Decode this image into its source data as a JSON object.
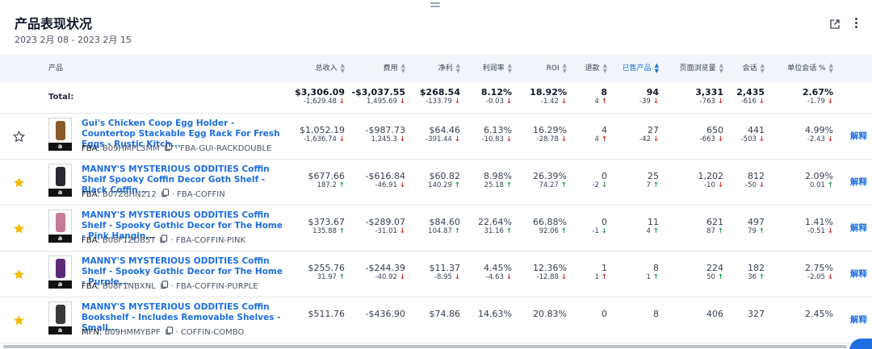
{
  "header": {
    "title": "产品表现状况",
    "date_range": "2023 2月 08 - 2023 2月 15"
  },
  "columns": {
    "product": "产品",
    "revenue": "总收入",
    "fees": "费用",
    "net": "净利",
    "margin": "利润率",
    "roi": "ROI",
    "refunds": "退款",
    "units": "已售产品",
    "pageviews": "页面浏览量",
    "sessions": "会话",
    "conversion": "单位会话 %"
  },
  "total": {
    "label": "Total:",
    "revenue": "$3,306.09",
    "revenue_d": "-1,629.48",
    "revenue_dir": "down",
    "fees": "-$3,037.55",
    "fees_d": "1,495.69",
    "fees_dir": "down",
    "net": "$268.54",
    "net_d": "-133.79",
    "net_dir": "down",
    "margin": "8.12%",
    "margin_d": "-0.03",
    "margin_dir": "down",
    "roi": "18.92%",
    "roi_d": "-1.42",
    "roi_dir": "down",
    "refunds": "8",
    "refunds_d": "4",
    "refunds_dir": "up-red",
    "units": "94",
    "units_d": "-39",
    "units_dir": "down",
    "pageviews": "3,331",
    "pageviews_d": "-763",
    "pageviews_dir": "down",
    "sessions": "2,435",
    "sessions_d": "-616",
    "sessions_dir": "down",
    "conversion": "2.67%",
    "conversion_d": "-1.79",
    "conversion_dir": "down"
  },
  "products": [
    {
      "starred": false,
      "thumb_color": "#8a5a2b",
      "badge": "a",
      "title": "Gui's Chicken Coop Egg Holder - Countertop Stackable Egg Rack For Fresh Eggs - Rustic Kitch...",
      "channel": "FBA:",
      "asin": "B09HMPL3MM",
      "sku": "· FBA-GUI-RACKDOUBLE",
      "revenue": "$1,052.19",
      "revenue_d": "-1,636.74",
      "revenue_dir": "down",
      "fees": "-$987.73",
      "fees_d": "1,245.3",
      "fees_dir": "down",
      "net": "$64.46",
      "net_d": "-391.44",
      "net_dir": "down",
      "margin": "6.13%",
      "margin_d": "-10.83",
      "margin_dir": "down",
      "roi": "16.29%",
      "roi_d": "-28.78",
      "roi_dir": "down",
      "refunds": "4",
      "refunds_d": "4",
      "refunds_dir": "up-red",
      "units": "27",
      "units_d": "-42",
      "units_dir": "down",
      "pageviews": "650",
      "pageviews_d": "-663",
      "pageviews_dir": "down",
      "sessions": "441",
      "sessions_d": "-503",
      "sessions_dir": "down",
      "conversion": "4.99%",
      "conversion_d": "-2.43",
      "conversion_dir": "down",
      "explain": "解释"
    },
    {
      "starred": true,
      "thumb_color": "#2a2a35",
      "badge": "a",
      "title": "MANNY'S MYSTERIOUS ODDITIES Coffin Shelf Spooky Coffin Decor Goth Shelf - Black Coffin...",
      "channel": "FBA:",
      "asin": "B07Z8HN212",
      "sku": "· FBA-COFFIN",
      "revenue": "$677.66",
      "revenue_d": "187.2",
      "revenue_dir": "up",
      "fees": "-$616.84",
      "fees_d": "-46.91",
      "fees_dir": "down",
      "net": "$60.82",
      "net_d": "140.29",
      "net_dir": "up",
      "margin": "8.98%",
      "margin_d": "25.18",
      "margin_dir": "up",
      "roi": "26.39%",
      "roi_d": "74.27",
      "roi_dir": "up",
      "refunds": "0",
      "refunds_d": "-2",
      "refunds_dir": "down-green",
      "units": "25",
      "units_d": "7",
      "units_dir": "up",
      "pageviews": "1,202",
      "pageviews_d": "-10",
      "pageviews_dir": "down",
      "sessions": "812",
      "sessions_d": "-50",
      "sessions_dir": "down",
      "conversion": "2.09%",
      "conversion_d": "0.01",
      "conversion_dir": "up",
      "explain": "解释"
    },
    {
      "starred": true,
      "thumb_color": "#c77a9a",
      "badge": "a",
      "title": "MANNY'S MYSTERIOUS ODDITIES Coffin Shelf - Spooky Gothic Decor for The Home - Pink Hangin...",
      "channel": "FBA:",
      "asin": "B08F1ZDB5T",
      "sku": "· FBA-COFFIN-PINK",
      "revenue": "$373.67",
      "revenue_d": "135.88",
      "revenue_dir": "up",
      "fees": "-$289.07",
      "fees_d": "-31.01",
      "fees_dir": "down",
      "net": "$84.60",
      "net_d": "104.87",
      "net_dir": "up",
      "margin": "22.64%",
      "margin_d": "31.16",
      "margin_dir": "up",
      "roi": "66.88%",
      "roi_d": "92.06",
      "roi_dir": "up",
      "refunds": "0",
      "refunds_d": "-1",
      "refunds_dir": "down-green",
      "units": "11",
      "units_d": "4",
      "units_dir": "up",
      "pageviews": "621",
      "pageviews_d": "87",
      "pageviews_dir": "up",
      "sessions": "497",
      "sessions_d": "79",
      "sessions_dir": "up",
      "conversion": "1.41%",
      "conversion_d": "-0.51",
      "conversion_dir": "down",
      "explain": "解释"
    },
    {
      "starred": true,
      "thumb_color": "#5b2b7a",
      "badge": "a",
      "title": "MANNY'S MYSTERIOUS ODDITIES Coffin Shelf - Spooky Gothic Decor for The Home - Purple...",
      "channel": "FBA:",
      "asin": "B08F1NBXNL",
      "sku": "· FBA-COFFIN-PURPLE",
      "revenue": "$255.76",
      "revenue_d": "31.97",
      "revenue_dir": "up",
      "fees": "-$244.39",
      "fees_d": "-40.92",
      "fees_dir": "down",
      "net": "$11.37",
      "net_d": "-8.95",
      "net_dir": "down",
      "margin": "4.45%",
      "margin_d": "-4.63",
      "margin_dir": "down",
      "roi": "12.36%",
      "roi_d": "-12.88",
      "roi_dir": "down",
      "refunds": "1",
      "refunds_d": "1",
      "refunds_dir": "up-red",
      "units": "8",
      "units_d": "1",
      "units_dir": "up",
      "pageviews": "224",
      "pageviews_d": "50",
      "pageviews_dir": "up",
      "sessions": "182",
      "sessions_d": "36",
      "sessions_dir": "up",
      "conversion": "2.75%",
      "conversion_d": "-2.05",
      "conversion_dir": "down",
      "explain": "解释"
    },
    {
      "starred": true,
      "thumb_color": "#3a3a3a",
      "badge": "a",
      "title": "MANNY'S MYSTERIOUS ODDITIES Coffin Bookshelf - Includes Removable Shelves - Small...",
      "channel": "MFN:",
      "asin": "B09HMMYBPF",
      "sku": "· COFFIN-COMBO",
      "revenue": "$511.76",
      "revenue_d": "",
      "revenue_dir": "none",
      "fees": "-$436.90",
      "fees_d": "",
      "fees_dir": "none",
      "net": "$74.86",
      "net_d": "",
      "net_dir": "none",
      "margin": "14.63%",
      "margin_d": "",
      "margin_dir": "none",
      "roi": "20.83%",
      "roi_d": "",
      "roi_dir": "none",
      "refunds": "0",
      "refunds_d": "",
      "refunds_dir": "none",
      "units": "8",
      "units_d": "",
      "units_dir": "none",
      "pageviews": "406",
      "pageviews_d": "",
      "pageviews_dir": "none",
      "sessions": "327",
      "sessions_d": "",
      "sessions_dir": "none",
      "conversion": "2.45%",
      "conversion_d": "",
      "conversion_dir": "none",
      "explain": "解释"
    }
  ],
  "colors": {
    "accent": "#1d6fe0",
    "up": "#16a34a",
    "down": "#dc2626",
    "star": "#f5b800",
    "header_bg": "#f1f5f9"
  }
}
